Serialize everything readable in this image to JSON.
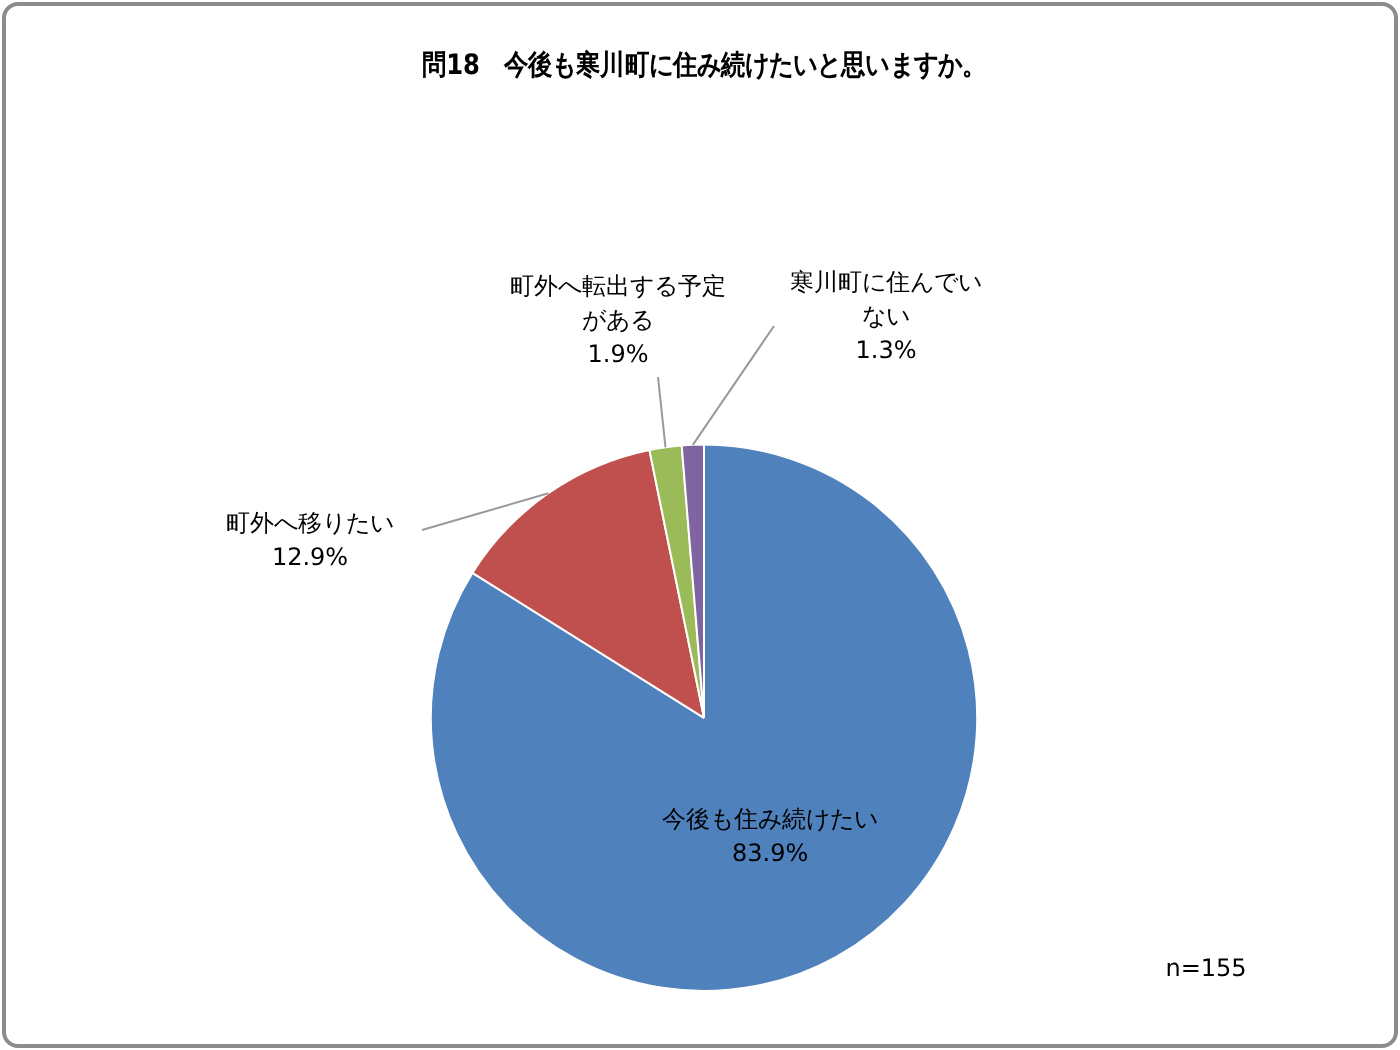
{
  "chart_data": {
    "type": "pie",
    "title": "問18　今後も寒川町に住み続けたいと思いますか。",
    "categories": [
      "今後も住み続けたい",
      "町外へ移りたい",
      "町外へ転出する予定がある",
      "寒川町に住んでいない"
    ],
    "values": [
      83.9,
      12.9,
      1.9,
      1.3
    ],
    "colors": [
      "#4f81bd",
      "#c0504d",
      "#9bbb59",
      "#8064a2"
    ],
    "value_labels": [
      "83.9%",
      "12.9%",
      "1.9%",
      "1.3%"
    ],
    "legend": false,
    "annotations": [
      "n=155"
    ]
  }
}
